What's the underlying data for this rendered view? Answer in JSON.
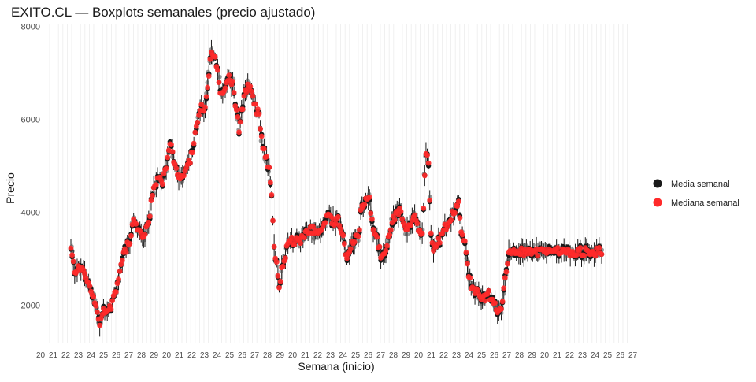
{
  "chart_data": {
    "type": "scatter",
    "title": "EXITO.CL — Boxplots semanales (precio ajustado)",
    "xlabel": "Semana (inicio)",
    "ylabel": "Precio",
    "ylim": [
      1180,
      8040
    ],
    "yticks": [
      2000,
      4000,
      6000,
      8000
    ],
    "x_axis_note": "weekly date categories, tick labels illegibly overlapped",
    "grid": true,
    "legend_position": "right",
    "series": [
      {
        "name": "Media semanal",
        "color": "#1a1a1a"
      },
      {
        "name": "Mediana semanal",
        "color": "#ff2a2a"
      }
    ],
    "weeks_count": 424,
    "median_keypoints": [
      [
        0,
        3200
      ],
      [
        3,
        2750
      ],
      [
        7,
        2800
      ],
      [
        11,
        2700
      ],
      [
        15,
        2400
      ],
      [
        17,
        2200
      ],
      [
        21,
        1900
      ],
      [
        23,
        1600
      ],
      [
        26,
        1900
      ],
      [
        30,
        1850
      ],
      [
        35,
        2200
      ],
      [
        38,
        2600
      ],
      [
        41,
        3000
      ],
      [
        44,
        3200
      ],
      [
        47,
        3400
      ],
      [
        50,
        3800
      ],
      [
        53,
        3650
      ],
      [
        56,
        3500
      ],
      [
        60,
        3600
      ],
      [
        63,
        4000
      ],
      [
        66,
        4500
      ],
      [
        70,
        4700
      ],
      [
        73,
        4650
      ],
      [
        76,
        5000
      ],
      [
        79,
        5550
      ],
      [
        82,
        5100
      ],
      [
        85,
        4800
      ],
      [
        88,
        4700
      ],
      [
        92,
        5000
      ],
      [
        95,
        5100
      ],
      [
        98,
        5500
      ],
      [
        101,
        6000
      ],
      [
        104,
        6300
      ],
      [
        107,
        6200
      ],
      [
        110,
        6900
      ],
      [
        112,
        7500
      ],
      [
        115,
        7300
      ],
      [
        118,
        6800
      ],
      [
        120,
        6500
      ],
      [
        123,
        6600
      ],
      [
        126,
        6900
      ],
      [
        129,
        6750
      ],
      [
        131,
        6300
      ],
      [
        134,
        5800
      ],
      [
        137,
        6300
      ],
      [
        141,
        6800
      ],
      [
        144,
        6600
      ],
      [
        147,
        6250
      ],
      [
        150,
        6100
      ],
      [
        153,
        5400
      ],
      [
        156,
        5200
      ],
      [
        158,
        4900
      ],
      [
        160,
        4300
      ],
      [
        162,
        3200
      ],
      [
        164,
        2900
      ],
      [
        166,
        2400
      ],
      [
        169,
        2900
      ],
      [
        172,
        3200
      ],
      [
        175,
        3450
      ],
      [
        178,
        3350
      ],
      [
        183,
        3400
      ],
      [
        187,
        3500
      ],
      [
        191,
        3650
      ],
      [
        194,
        3600
      ],
      [
        197,
        3550
      ],
      [
        201,
        3700
      ],
      [
        205,
        3900
      ],
      [
        209,
        3800
      ],
      [
        213,
        3850
      ],
      [
        217,
        3500
      ],
      [
        220,
        3000
      ],
      [
        224,
        3300
      ],
      [
        227,
        3500
      ],
      [
        229,
        3400
      ],
      [
        231,
        4000
      ],
      [
        234,
        4200
      ],
      [
        238,
        4300
      ],
      [
        241,
        3600
      ],
      [
        244,
        3400
      ],
      [
        247,
        3100
      ],
      [
        251,
        3200
      ],
      [
        254,
        3600
      ],
      [
        258,
        3900
      ],
      [
        262,
        4000
      ],
      [
        265,
        3800
      ],
      [
        268,
        3600
      ],
      [
        271,
        3800
      ],
      [
        274,
        3900
      ],
      [
        277,
        3600
      ],
      [
        280,
        3500
      ],
      [
        282,
        4700
      ],
      [
        283,
        5200
      ],
      [
        285,
        5100
      ],
      [
        287,
        3500
      ],
      [
        289,
        3200
      ],
      [
        292,
        3300
      ],
      [
        295,
        3500
      ],
      [
        299,
        3700
      ],
      [
        303,
        3900
      ],
      [
        307,
        4100
      ],
      [
        309,
        4300
      ],
      [
        311,
        3600
      ],
      [
        313,
        3400
      ],
      [
        315,
        3200
      ],
      [
        317,
        2700
      ],
      [
        319,
        2400
      ],
      [
        322,
        2300
      ],
      [
        326,
        2200
      ],
      [
        330,
        2100
      ],
      [
        333,
        2250
      ],
      [
        336,
        2100
      ],
      [
        339,
        1900
      ],
      [
        342,
        1850
      ],
      [
        345,
        2300
      ],
      [
        347,
        2800
      ],
      [
        350,
        3200
      ],
      [
        352,
        3150
      ]
    ]
  }
}
